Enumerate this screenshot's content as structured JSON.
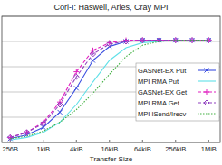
{
  "chart_data": {
    "type": "line",
    "title": "Cori-I: Haswell, Aries, Cray MPI",
    "x_label": "Transfer Size",
    "x": [
      256,
      512,
      1024,
      2048,
      4096,
      8192,
      16384,
      32768,
      65536,
      131072,
      262144,
      524288,
      1048576
    ],
    "xlim": [
      180,
      1700000
    ],
    "xticks": [
      {
        "value": 256,
        "label": "256B"
      },
      {
        "value": 1024,
        "label": "1kiB"
      },
      {
        "value": 4096,
        "label": "4kiB"
      },
      {
        "value": 16384,
        "label": "16kiB"
      },
      {
        "value": 65536,
        "label": "64kiB"
      },
      {
        "value": 262144,
        "label": "256kiB"
      },
      {
        "value": 1048576,
        "label": "1MiB"
      }
    ],
    "ylim": [
      0,
      10
    ],
    "yticks": [
      0,
      2,
      4,
      6,
      8,
      10
    ],
    "log": "x",
    "grid": true,
    "legend": "right",
    "tick_labels": "x",
    "series": [
      {
        "name": "GASNet-EX Put",
        "color": "#3b4fe0",
        "marker": "x",
        "line_style": "solid",
        "values": [
          0.3,
          0.6,
          1.2,
          2.4,
          4.3,
          6.5,
          7.6,
          8.0,
          8.1,
          8.1,
          8.1,
          8.1,
          8.1
        ]
      },
      {
        "name": "MPI RMA Put",
        "color": "#5fe0e8",
        "marker": "none",
        "line_style": "solid",
        "values": [
          0.2,
          0.4,
          0.8,
          1.6,
          3.0,
          4.8,
          6.5,
          7.5,
          7.9,
          8.0,
          8.1,
          8.1,
          8.1
        ]
      },
      {
        "name": "GASNet-EX Get",
        "color": "#e020c0",
        "marker": "plus",
        "line_style": "dashed",
        "values": [
          0.4,
          0.8,
          1.6,
          3.2,
          5.6,
          7.3,
          7.9,
          8.1,
          8.1,
          8.1,
          8.1,
          8.1,
          8.1
        ]
      },
      {
        "name": "MPI RMA Get",
        "color": "#9040c0",
        "marker": "diamond",
        "line_style": "dashed",
        "values": [
          0.4,
          0.8,
          1.5,
          3.0,
          5.2,
          7.0,
          7.8,
          8.0,
          8.1,
          8.1,
          8.1,
          8.1,
          8.1
        ]
      },
      {
        "name": "MPI ISend/Irecv",
        "color": "#40b040",
        "marker": "none",
        "line_style": "dotted",
        "values": [
          0.3,
          0.5,
          0.9,
          1.6,
          2.6,
          3.9,
          5.4,
          6.8,
          7.7,
          8.0,
          8.1,
          8.1,
          8.1
        ]
      }
    ]
  }
}
